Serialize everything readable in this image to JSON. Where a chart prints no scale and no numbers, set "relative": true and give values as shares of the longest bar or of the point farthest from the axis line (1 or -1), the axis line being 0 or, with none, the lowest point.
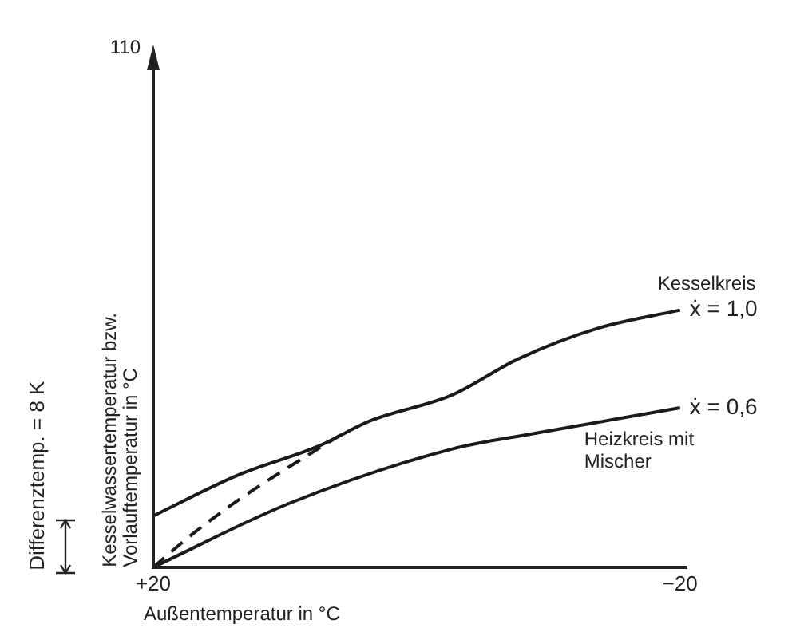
{
  "chart_data": {
    "type": "line",
    "relative": true,
    "xlabel": "Außentemperatur in °C",
    "ylabel": "Kesselwassertemperatur bzw. Vorlauftemperatur in °C",
    "xlim": [
      20,
      -20.5
    ],
    "xticks": [
      {
        "value": 20,
        "label": "+20"
      },
      {
        "value": -20,
        "label": "−20"
      }
    ],
    "series": [
      {
        "name": "Kesselkreis",
        "color": "#1a1a1a",
        "line_style": "solid",
        "x": [
          20,
          13.5,
          7.5,
          3.5,
          -2.7,
          -7.7,
          -13.8,
          -20
        ],
        "values": [
          0.2,
          0.36,
          0.47,
          0.57,
          0.67,
          0.81,
          0.93,
          1
        ]
      },
      {
        "name": "Heizkreis mit Mischer",
        "color": "#1a1a1a",
        "line_style": "solid",
        "x": [
          20,
          9.6,
          -2.7,
          -8.9,
          -20
        ],
        "values": [
          0,
          0.25,
          0.46,
          0.52,
          0.62
        ]
      },
      {
        "color": "#1a1a1a",
        "line_style": "dashed",
        "x": [
          20,
          17,
          13.3,
          10,
          7.5,
          5.6
        ],
        "values": [
          0,
          0.13,
          0.27,
          0.38,
          0.46,
          0.52
        ]
      }
    ],
    "annotations": [
      "110",
      "Differenztemp. = 8 K",
      {
        "text": "ẋ = 1,0",
        "x": -20,
        "y": 1
      },
      {
        "text": "ẋ = 0,6",
        "x": -20,
        "y": 0.62
      }
    ],
    "grid": false,
    "legend": false,
    "marker": "none"
  }
}
